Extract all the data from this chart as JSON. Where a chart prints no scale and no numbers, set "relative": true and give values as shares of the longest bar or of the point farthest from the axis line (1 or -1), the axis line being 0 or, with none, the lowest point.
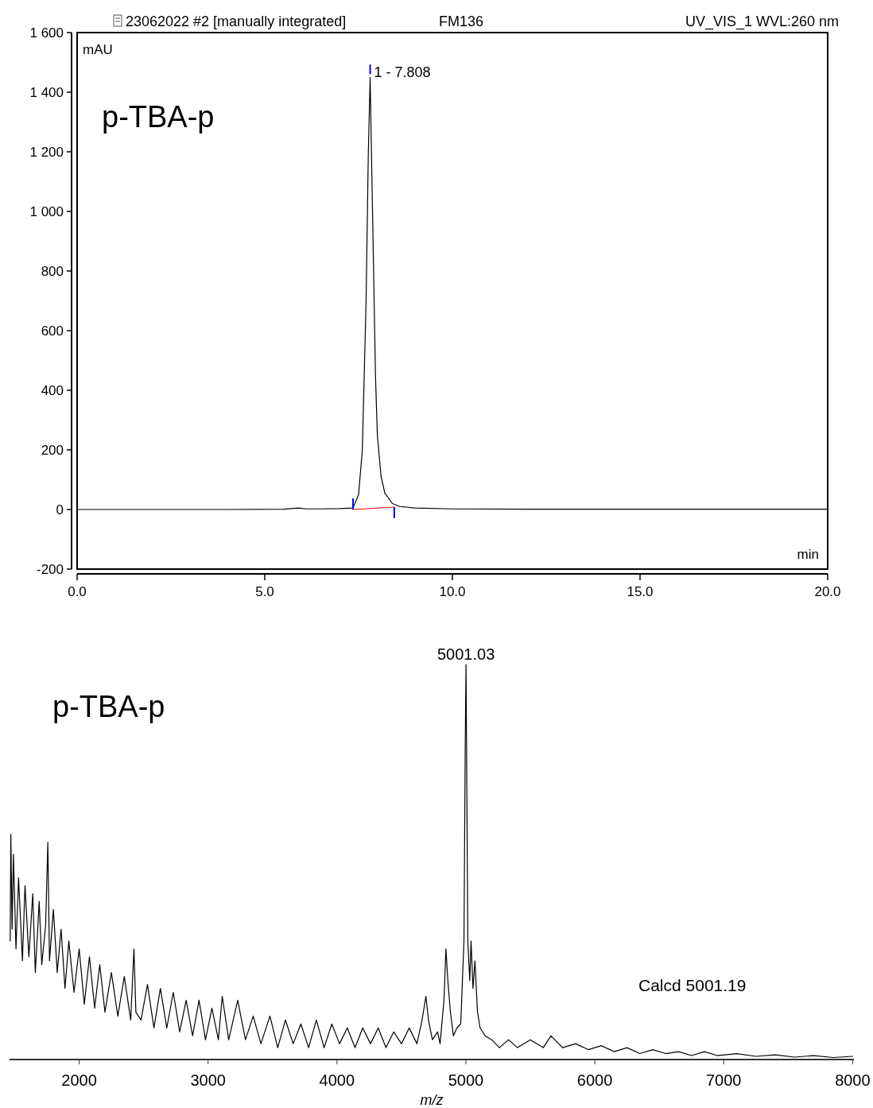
{
  "chart_data": [
    {
      "type": "line",
      "title": "FM136",
      "subtitle": "23062022 #2 [manually integrated]",
      "ylabel": "mAU",
      "xlabel": "min",
      "annotations": [
        "UV_VIS_1 WVL:260 nm",
        "p-TBA-p",
        {
          "text": "1 - 7.808",
          "x": 7.808,
          "y": 1450
        }
      ],
      "xlim": [
        0,
        20
      ],
      "xticks": [
        {
          "value": 0,
          "label": "0.0"
        },
        {
          "value": 5,
          "label": "5.0"
        },
        {
          "value": 10,
          "label": "10.0"
        },
        {
          "value": 15,
          "label": "15.0"
        },
        {
          "value": 20,
          "label": "20.0"
        }
      ],
      "ylim": [
        -200,
        1600
      ],
      "yticks": [
        -200,
        0,
        200,
        400,
        600,
        800,
        {
          "value": 1000,
          "label": "1 000"
        },
        {
          "value": 1200,
          "label": "1 200"
        },
        {
          "value": 1400,
          "label": "1 400"
        },
        {
          "value": 1600,
          "label": "1 600"
        }
      ],
      "series": [
        {
          "color": "#000000",
          "x": [
            0,
            2,
            4,
            5.5,
            5.9,
            6.1,
            6.5,
            7,
            7.35,
            7.5,
            7.6,
            7.7,
            7.76,
            7.808,
            7.85,
            7.9,
            7.95,
            8.0,
            8.1,
            8.2,
            8.4,
            8.6,
            9.0,
            10,
            12,
            15,
            18,
            20
          ],
          "values": [
            0,
            0,
            0,
            1,
            5,
            2,
            2,
            3,
            5,
            50,
            200,
            700,
            1200,
            1450,
            1150,
            800,
            450,
            250,
            110,
            55,
            20,
            10,
            5,
            2,
            1,
            1,
            1,
            1
          ]
        },
        {
          "color": "#ff0000",
          "x": [
            7.35,
            8.45
          ],
          "values": [
            0,
            8
          ]
        }
      ]
    },
    {
      "type": "line",
      "relative": true,
      "xlabel": "m/z",
      "tick_labels": "x",
      "annotations": [
        "p-TBA-p",
        "Calcd 5001.19",
        {
          "text": "5001.03",
          "x": 5001.03,
          "y": 1
        }
      ],
      "xlim": [
        1460,
        8010
      ],
      "xticks": [
        2000,
        3000,
        4000,
        5000,
        6000,
        7000,
        8000
      ],
      "series": [
        {
          "color": "#000000",
          "x": [
            1465,
            1470,
            1480,
            1490,
            1510,
            1530,
            1560,
            1580,
            1610,
            1640,
            1660,
            1690,
            1710,
            1740,
            1757,
            1770,
            1800,
            1830,
            1860,
            1890,
            1920,
            1960,
            2000,
            2040,
            2080,
            2120,
            2160,
            2200,
            2250,
            2300,
            2350,
            2400,
            2425,
            2440,
            2480,
            2530,
            2580,
            2630,
            2680,
            2730,
            2780,
            2830,
            2880,
            2930,
            2980,
            3030,
            3080,
            3110,
            3160,
            3230,
            3290,
            3350,
            3410,
            3480,
            3540,
            3600,
            3660,
            3720,
            3780,
            3840,
            3900,
            3960,
            4020,
            4080,
            4140,
            4200,
            4260,
            4320,
            4380,
            4440,
            4500,
            4560,
            4620,
            4660,
            4690,
            4710,
            4740,
            4780,
            4800,
            4830,
            4845,
            4860,
            4880,
            4903,
            4930,
            4960,
            4985,
            4995,
            5001,
            5006,
            5015,
            5030,
            5040,
            5055,
            5070,
            5090,
            5110,
            5150,
            5200,
            5260,
            5330,
            5400,
            5500,
            5600,
            5660,
            5750,
            5850,
            5950,
            6050,
            6150,
            6250,
            6350,
            6450,
            6550,
            6650,
            6750,
            6850,
            6950,
            7100,
            7250,
            7400,
            7550,
            7700,
            7850,
            8000
          ],
          "values": [
            0.3,
            0.57,
            0.33,
            0.52,
            0.28,
            0.46,
            0.25,
            0.44,
            0.26,
            0.42,
            0.22,
            0.4,
            0.24,
            0.34,
            0.55,
            0.25,
            0.38,
            0.22,
            0.33,
            0.18,
            0.3,
            0.17,
            0.28,
            0.14,
            0.26,
            0.13,
            0.24,
            0.12,
            0.22,
            0.11,
            0.21,
            0.1,
            0.28,
            0.12,
            0.1,
            0.19,
            0.08,
            0.18,
            0.08,
            0.17,
            0.07,
            0.15,
            0.06,
            0.15,
            0.05,
            0.13,
            0.05,
            0.16,
            0.05,
            0.15,
            0.05,
            0.11,
            0.04,
            0.11,
            0.03,
            0.1,
            0.04,
            0.09,
            0.03,
            0.1,
            0.03,
            0.09,
            0.04,
            0.08,
            0.03,
            0.08,
            0.04,
            0.08,
            0.03,
            0.07,
            0.04,
            0.08,
            0.04,
            0.1,
            0.16,
            0.1,
            0.05,
            0.07,
            0.04,
            0.15,
            0.28,
            0.2,
            0.12,
            0.06,
            0.08,
            0.09,
            0.3,
            0.8,
            1,
            0.75,
            0.3,
            0.2,
            0.3,
            0.18,
            0.25,
            0.12,
            0.08,
            0.06,
            0.05,
            0.03,
            0.05,
            0.03,
            0.05,
            0.03,
            0.06,
            0.03,
            0.04,
            0.025,
            0.035,
            0.02,
            0.03,
            0.015,
            0.025,
            0.015,
            0.02,
            0.01,
            0.02,
            0.01,
            0.015,
            0.008,
            0.012,
            0.006,
            0.01,
            0.005,
            0.008
          ]
        }
      ]
    }
  ]
}
